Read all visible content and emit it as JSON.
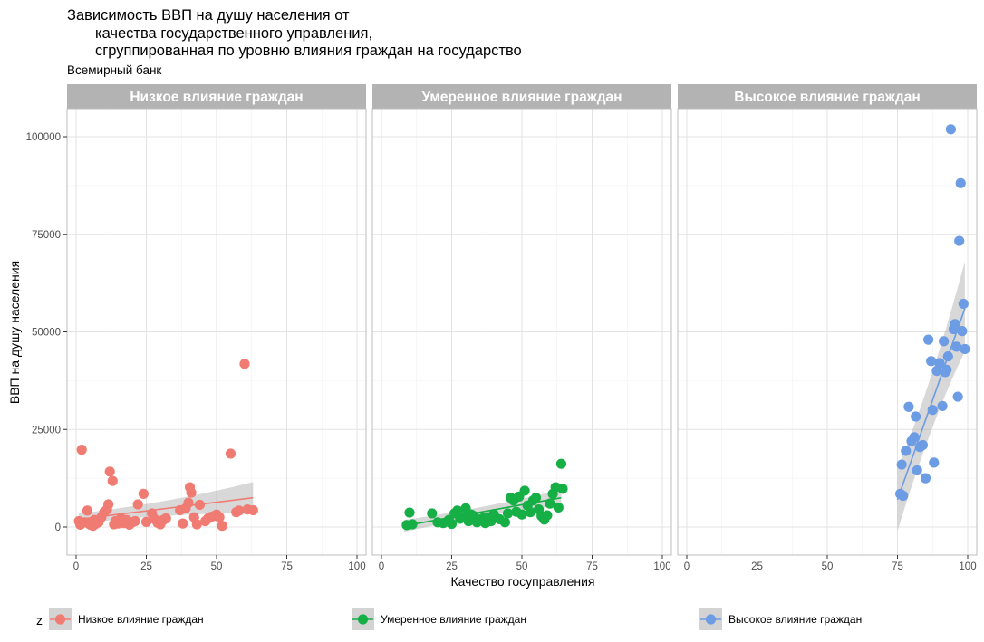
{
  "chart_data": {
    "type": "scatter",
    "title_lines": [
      "Зависимость ВВП на душу населения от",
      "качества государственного управления,",
      "сгруппированная по уровню влияния граждан на государство"
    ],
    "subtitle": "Всемирный банк",
    "xlabel": "Качество госуправления",
    "ylabel": "ВВП на душу населения",
    "xlim": [
      0,
      100
    ],
    "ylim": [
      0,
      105000
    ],
    "x_ticks": [
      0,
      25,
      50,
      75,
      100
    ],
    "y_ticks": [
      0,
      25000,
      50000,
      75000,
      100000
    ],
    "y_tick_labels": [
      "0",
      "25000",
      "50000",
      "75000",
      "100000"
    ],
    "grid": true,
    "legend_position": "bottom",
    "legend_title": "z",
    "panels": [
      {
        "name": "Низкое влияние граждан",
        "color": "#F07B72",
        "trend": {
          "x": [
            1,
            63
          ],
          "y": [
            2000,
            7500
          ],
          "ci_low_start": 800,
          "ci_high_start": 3500,
          "ci_low_end": 3500,
          "ci_high_end": 11500
        },
        "points": [
          [
            1,
            1500
          ],
          [
            1.5,
            600
          ],
          [
            2,
            19800
          ],
          [
            3,
            1200
          ],
          [
            4,
            4200
          ],
          [
            4.5,
            900
          ],
          [
            5,
            600
          ],
          [
            6,
            300
          ],
          [
            6.5,
            1800
          ],
          [
            7,
            800
          ],
          [
            8,
            1200
          ],
          [
            9,
            2500
          ],
          [
            10,
            3800
          ],
          [
            11,
            4500
          ],
          [
            11.5,
            5800
          ],
          [
            12,
            14200
          ],
          [
            13,
            11800
          ],
          [
            13.5,
            700
          ],
          [
            14,
            1500
          ],
          [
            15,
            900
          ],
          [
            16,
            2200
          ],
          [
            17,
            1000
          ],
          [
            18,
            1800
          ],
          [
            19,
            600
          ],
          [
            20,
            1200
          ],
          [
            21,
            1500
          ],
          [
            22,
            5800
          ],
          [
            24,
            8500
          ],
          [
            25,
            1300
          ],
          [
            27,
            3500
          ],
          [
            28,
            2000
          ],
          [
            29,
            1100
          ],
          [
            30,
            700
          ],
          [
            31,
            1800
          ],
          [
            32,
            2200
          ],
          [
            37,
            4300
          ],
          [
            38,
            900
          ],
          [
            39,
            4800
          ],
          [
            40,
            6200
          ],
          [
            40.5,
            10200
          ],
          [
            41,
            8800
          ],
          [
            42,
            2500
          ],
          [
            43,
            700
          ],
          [
            44,
            5700
          ],
          [
            46,
            1500
          ],
          [
            47,
            2200
          ],
          [
            48,
            2600
          ],
          [
            49,
            2800
          ],
          [
            50,
            3200
          ],
          [
            51,
            2500
          ],
          [
            52,
            300
          ],
          [
            55,
            18800
          ],
          [
            57,
            3800
          ],
          [
            58,
            4200
          ],
          [
            60,
            41800
          ],
          [
            61,
            4500
          ],
          [
            63,
            4300
          ]
        ]
      },
      {
        "name": "Умеренное влияние граждан",
        "color": "#16AF46",
        "trend": {
          "x": [
            8,
            64
          ],
          "y": [
            300,
            7500
          ],
          "ci_low_start": -1200,
          "ci_high_start": 1800,
          "ci_low_end": 5500,
          "ci_high_end": 9500
        },
        "points": [
          [
            9,
            500
          ],
          [
            10,
            3700
          ],
          [
            11,
            700
          ],
          [
            18,
            3500
          ],
          [
            20,
            1200
          ],
          [
            22,
            1000
          ],
          [
            24,
            1800
          ],
          [
            25,
            800
          ],
          [
            26,
            3500
          ],
          [
            27,
            4200
          ],
          [
            28,
            2100
          ],
          [
            29,
            2500
          ],
          [
            30,
            4800
          ],
          [
            31,
            1500
          ],
          [
            32,
            3200
          ],
          [
            33,
            2800
          ],
          [
            34,
            1200
          ],
          [
            35,
            1800
          ],
          [
            36,
            2200
          ],
          [
            37,
            1000
          ],
          [
            38,
            2500
          ],
          [
            39,
            1500
          ],
          [
            40,
            3300
          ],
          [
            42,
            2000
          ],
          [
            44,
            1200
          ],
          [
            45,
            3500
          ],
          [
            46,
            7500
          ],
          [
            47,
            6800
          ],
          [
            48,
            3900
          ],
          [
            49,
            7800
          ],
          [
            50,
            3200
          ],
          [
            51,
            9300
          ],
          [
            52,
            5500
          ],
          [
            53,
            3800
          ],
          [
            54,
            6800
          ],
          [
            55,
            7500
          ],
          [
            56,
            4500
          ],
          [
            57,
            2800
          ],
          [
            58,
            1900
          ],
          [
            59,
            3000
          ],
          [
            60,
            6000
          ],
          [
            61,
            8500
          ],
          [
            62,
            10200
          ],
          [
            63,
            5000
          ],
          [
            64,
            16200
          ],
          [
            64.5,
            9800
          ]
        ]
      },
      {
        "name": "Высокое влияние граждан",
        "color": "#6C9CE3",
        "trend": {
          "x": [
            75,
            99
          ],
          "y": [
            7000,
            56000
          ],
          "ci_low_start": -1000,
          "ci_high_start": 15000,
          "ci_low_end": 45000,
          "ci_high_end": 68000
        },
        "points": [
          [
            76,
            8500
          ],
          [
            76.5,
            16000
          ],
          [
            77,
            8000
          ],
          [
            78,
            19500
          ],
          [
            79,
            30800
          ],
          [
            80,
            22000
          ],
          [
            81,
            23000
          ],
          [
            81.5,
            28300
          ],
          [
            82,
            14500
          ],
          [
            83,
            20500
          ],
          [
            84,
            21000
          ],
          [
            85,
            12500
          ],
          [
            86,
            48000
          ],
          [
            87,
            42500
          ],
          [
            87.5,
            30000
          ],
          [
            88,
            16500
          ],
          [
            89,
            40000
          ],
          [
            90,
            42000
          ],
          [
            91,
            31000
          ],
          [
            91.5,
            47600
          ],
          [
            92,
            39700
          ],
          [
            92.5,
            40300
          ],
          [
            93,
            43700
          ],
          [
            94,
            101900
          ],
          [
            95,
            50700
          ],
          [
            95.5,
            52000
          ],
          [
            96,
            46200
          ],
          [
            96.5,
            33400
          ],
          [
            97,
            73300
          ],
          [
            97.5,
            88100
          ],
          [
            98,
            50200
          ],
          [
            98.5,
            57200
          ],
          [
            99,
            45600
          ]
        ]
      }
    ]
  }
}
